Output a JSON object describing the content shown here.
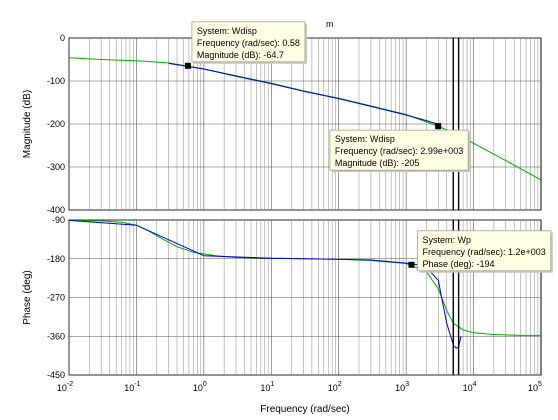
{
  "chart_data": {
    "type": "line",
    "subtype": "bode",
    "title_fragment": "m",
    "xlabel": "Frequency  (rad/sec)",
    "x_scale": "log",
    "xlim": [
      0.01,
      100000
    ],
    "x_ticks": [
      {
        "value": 0.01,
        "base": "10",
        "exp": "-2"
      },
      {
        "value": 0.1,
        "base": "10",
        "exp": "-1"
      },
      {
        "value": 1,
        "base": "10",
        "exp": "0"
      },
      {
        "value": 10,
        "base": "10",
        "exp": "1"
      },
      {
        "value": 100,
        "base": "10",
        "exp": "2"
      },
      {
        "value": 1000,
        "base": "10",
        "exp": "3"
      },
      {
        "value": 10000,
        "base": "10",
        "exp": "4"
      },
      {
        "value": 100000,
        "base": "10",
        "exp": "5"
      }
    ],
    "grid": true,
    "panels": [
      {
        "id": "magnitude",
        "ylabel": "Magnitude (dB)",
        "ylim": [
          -400,
          0
        ],
        "y_ticks": [
          0,
          -100,
          -200,
          -300,
          -400
        ],
        "y_tick_labels": [
          "0",
          "-100",
          "-200",
          "-300",
          "-400"
        ],
        "series": [
          {
            "name": "Wdisp",
            "color": "#00aa00",
            "x": [
              0.01,
              0.03,
              0.1,
              0.3,
              1,
              3,
              10,
              30,
              100,
              300,
              1000,
              2990,
              4000,
              6000,
              10000,
              30000,
              100000
            ],
            "y": [
              -46,
              -50,
              -53,
              -58,
              -72,
              -88,
              -105,
              -123,
              -140,
              -158,
              -178,
              -205,
              -214,
              -226,
              -245,
              -285,
              -330
            ]
          },
          {
            "name": "Wp",
            "color": "#0000cc",
            "x": [
              0.3,
              1,
              3,
              10,
              30,
              100,
              300,
              1000,
              2000,
              3000
            ],
            "y": [
              -59,
              -72,
              -89,
              -106,
              -124,
              -141,
              -159,
              -179,
              -192,
              -201
            ]
          }
        ],
        "datatips": [
          {
            "series": "System: Wdisp",
            "freq_label": "Frequency (rad/sec): 0.58",
            "value_label": "Magnitude (dB): -64.7",
            "x": 0.58,
            "y": -64.7,
            "align": "left"
          },
          {
            "series": "System: Wdisp",
            "freq_label": "Frequency (rad/sec): 2.99e+003",
            "value_label": "Magnitude (dB): -205",
            "x": 2990,
            "y": -205,
            "align": "right"
          }
        ]
      },
      {
        "id": "phase",
        "ylabel": "Phase (deg)",
        "ylim": [
          -450,
          -90
        ],
        "y_ticks": [
          -90,
          -180,
          -270,
          -360,
          -450
        ],
        "y_tick_labels": [
          "-90",
          "-180",
          "-270",
          "-360",
          "-450"
        ],
        "series": [
          {
            "name": "Wdisp",
            "color": "#00aa00",
            "x": [
              0.01,
              0.03,
              0.06,
              0.1,
              0.15,
              0.25,
              0.4,
              0.7,
              1.5,
              3,
              10,
              30,
              100,
              300,
              1000,
              2000,
              3000,
              4000,
              5000,
              7000,
              10000,
              20000,
              50000,
              100000
            ],
            "y": [
              -91,
              -92,
              -95,
              -102,
              -115,
              -135,
              -152,
              -165,
              -173,
              -177,
              -179,
              -180,
              -181,
              -184,
              -191,
              -210,
              -250,
              -300,
              -330,
              -345,
              -352,
              -356,
              -358,
              -358
            ]
          },
          {
            "name": "Wp",
            "color": "#0000cc",
            "x": [
              0.01,
              0.1,
              1,
              10,
              100,
              300,
              1000,
              1500,
              2000,
              3000,
              4000,
              5000,
              5500,
              6000,
              6500
            ],
            "y": [
              -91,
              -102,
              -173,
              -179,
              -181,
              -183,
              -190,
              -194,
              -200,
              -230,
              -330,
              -380,
              -388,
              -385,
              -360
            ]
          }
        ],
        "datatips": [
          {
            "series": "System: Wp",
            "freq_label": "Frequency (rad/sec): 1.2e+003",
            "value_label": "Phase (deg): -194",
            "x": 1200,
            "y": -194,
            "align": "right"
          }
        ]
      }
    ],
    "marker_lines": [
      5000,
      6000
    ]
  }
}
